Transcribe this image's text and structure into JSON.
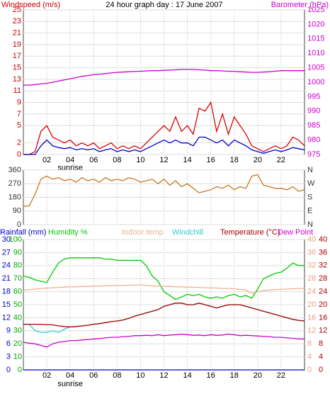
{
  "chart_data": [
    {
      "type": "line",
      "title": "24 hour graph day : 17 June 2007",
      "y_label": "Windspeed (m/s)",
      "y2_label": "Barometer (hPa)",
      "annotations": [
        {
          "text": "sunrise",
          "x": 4
        }
      ],
      "x": [
        0,
        0.5,
        1,
        1.5,
        2,
        2.5,
        3,
        3.5,
        4,
        4.5,
        5,
        5.5,
        6,
        6.5,
        7,
        7.5,
        8,
        8.5,
        9,
        9.5,
        10,
        10.5,
        11,
        11.5,
        12,
        12.5,
        13,
        13.5,
        14,
        14.5,
        15,
        15.5,
        16,
        16.5,
        17,
        17.5,
        18,
        18.5,
        19,
        19.5,
        20,
        20.5,
        21,
        21.5,
        22,
        22.5,
        23,
        23.5,
        24
      ],
      "xlim": [
        0,
        24
      ],
      "xticks": [
        {
          "value": 2,
          "label": "02"
        },
        {
          "value": 4,
          "label": "04"
        },
        {
          "value": 6,
          "label": "06"
        },
        {
          "value": 8,
          "label": "08"
        },
        10,
        12,
        14,
        16,
        18,
        20,
        22
      ],
      "ylim": [
        0,
        25
      ],
      "yticks": [
        0,
        2,
        5,
        7,
        9,
        11,
        13,
        15,
        17,
        19,
        21,
        23,
        25
      ],
      "ycolor": "#cc0000",
      "y2lim": [
        975,
        1025
      ],
      "y2ticks": [
        975,
        980,
        985,
        990,
        995,
        1000,
        1005,
        1010,
        1015,
        1020,
        1025
      ],
      "y2color": "#cc00cc",
      "series": [
        {
          "color": "#dd0000",
          "values": [
            0,
            0,
            0.5,
            4,
            5,
            3,
            2.5,
            2,
            2.5,
            1.5,
            2,
            1.5,
            2,
            1,
            1.5,
            2,
            1,
            1.5,
            1,
            1.5,
            1,
            2,
            3,
            4,
            5,
            4,
            6.5,
            4,
            5,
            3.5,
            8,
            7.5,
            9,
            4,
            7,
            3.5,
            6.5,
            5,
            3.5,
            1.5,
            1,
            0.5,
            1,
            1.5,
            1,
            1.5,
            3,
            2.5,
            1.5
          ]
        },
        {
          "color": "#0000cc",
          "values": [
            0,
            0,
            0,
            1.5,
            2.5,
            1.5,
            1.2,
            1,
            1.2,
            0.8,
            1,
            0.8,
            1,
            0.5,
            0.8,
            1,
            0.5,
            0.8,
            0.5,
            0.8,
            0.5,
            1,
            1.5,
            2,
            2.5,
            2,
            2.5,
            2,
            2,
            1.5,
            3,
            3,
            2.5,
            2,
            2.5,
            1.5,
            2.5,
            2,
            1.5,
            0.8,
            0.5,
            0.2,
            0.5,
            0.8,
            0.5,
            0.8,
            1.2,
            1,
            0.8
          ]
        },
        {
          "color": "#cc00cc",
          "axis": "y2",
          "values": [
            999,
            999,
            999.2,
            999.4,
            999.6,
            1000,
            1000.4,
            1000.8,
            1001.2,
            1001.6,
            1002,
            1002.3,
            1002.6,
            1002.8,
            1003,
            1003.2,
            1003.4,
            1003.5,
            1003.6,
            1003.7,
            1003.8,
            1003.9,
            1004,
            1004,
            1004.1,
            1004.2,
            1004.3,
            1004.4,
            1004.4,
            1004.4,
            1004.3,
            1004.2,
            1004,
            1004,
            1003.9,
            1003.8,
            1003.7,
            1003.6,
            1003.5,
            1003.4,
            1003.4,
            1003.5,
            1003.6,
            1003.8,
            1004,
            1004,
            1004,
            1004,
            1004
          ]
        }
      ]
    },
    {
      "type": "line",
      "x": [
        0,
        0.5,
        1,
        1.5,
        2,
        2.5,
        3,
        3.5,
        4,
        4.5,
        5,
        5.5,
        6,
        6.5,
        7,
        7.5,
        8,
        8.5,
        9,
        9.5,
        10,
        10.5,
        11,
        11.5,
        12,
        12.5,
        13,
        13.5,
        14,
        14.5,
        15,
        15.5,
        16,
        16.5,
        17,
        17.5,
        18,
        18.5,
        19,
        19.5,
        20,
        20.5,
        21,
        21.5,
        22,
        22.5,
        23,
        23.5,
        24
      ],
      "xlim": [
        0,
        24
      ],
      "xticks": [
        2,
        4,
        6,
        8,
        10,
        12,
        14,
        16,
        18,
        20,
        22
      ],
      "ylim": [
        0,
        360
      ],
      "yticks": [
        0,
        90,
        180,
        270,
        360
      ],
      "ycolor": "#333333",
      "y2lim": [
        0,
        360
      ],
      "y2ticks": [
        {
          "value": 0,
          "label": "N"
        },
        {
          "value": 90,
          "label": "E"
        },
        {
          "value": 180,
          "label": "S"
        },
        {
          "value": 270,
          "label": "W"
        },
        {
          "value": 360,
          "label": "N"
        }
      ],
      "y2color": "#333333",
      "series": [
        {
          "color": "#c87820",
          "values": [
            120,
            125,
            200,
            300,
            320,
            300,
            310,
            290,
            300,
            280,
            310,
            290,
            300,
            280,
            310,
            290,
            300,
            290,
            310,
            300,
            280,
            290,
            300,
            270,
            300,
            260,
            290,
            250,
            270,
            240,
            210,
            220,
            230,
            250,
            240,
            260,
            230,
            250,
            240,
            320,
            330,
            260,
            250,
            240,
            240,
            230,
            250,
            220,
            230
          ]
        }
      ]
    },
    {
      "type": "line",
      "annotations": [
        {
          "text": "sunrise",
          "x": 4
        }
      ],
      "x": [
        0,
        0.5,
        1,
        1.5,
        2,
        2.5,
        3,
        3.5,
        4,
        4.5,
        5,
        5.5,
        6,
        6.5,
        7,
        7.5,
        8,
        8.5,
        9,
        9.5,
        10,
        10.5,
        11,
        11.5,
        12,
        12.5,
        13,
        13.5,
        14,
        14.5,
        15,
        15.5,
        16,
        16.5,
        17,
        17.5,
        18,
        18.5,
        19,
        19.5,
        20,
        20.5,
        21,
        21.5,
        22,
        22.5,
        23,
        23.5,
        24
      ],
      "xlim": [
        0,
        24
      ],
      "xticks": [
        {
          "value": 2,
          "label": "02"
        },
        {
          "value": 4,
          "label": "04"
        },
        {
          "value": 6,
          "label": "06"
        },
        {
          "value": 8,
          "label": "08"
        },
        10,
        12,
        14,
        16,
        18,
        20,
        22
      ],
      "axes": {
        "rain": {
          "lim": [
            0,
            30
          ],
          "ticks": [
            0,
            3,
            6,
            9,
            12,
            15,
            18,
            21,
            24,
            27,
            30
          ],
          "color": "#0000cc"
        },
        "humidity": {
          "lim": [
            0,
            100
          ],
          "ticks": [
            0,
            10,
            20,
            30,
            40,
            50,
            60,
            70,
            80,
            90,
            100
          ],
          "color": "#00aa00"
        },
        "indoor": {
          "lim": [
            0,
            40
          ],
          "ticks": [
            0,
            4,
            8,
            12,
            16,
            20,
            24,
            28,
            32,
            36,
            40
          ],
          "color": "#e8a080"
        },
        "temp": {
          "lim": [
            0,
            40
          ],
          "ticks": [
            0,
            4,
            8,
            12,
            16,
            20,
            24,
            28,
            32,
            36,
            40
          ],
          "color": "#aa0000"
        }
      },
      "series": [
        {
          "name": "Rainfall (mm)",
          "color": "#0000cc",
          "axis": "rain",
          "values": [
            0,
            0,
            0,
            0,
            0,
            0,
            0,
            0,
            0,
            0,
            0,
            0,
            0,
            0,
            0,
            0,
            0,
            0,
            0,
            0,
            0,
            0,
            0,
            0,
            0,
            0,
            0,
            0,
            0,
            0,
            0,
            0,
            0,
            0,
            0,
            0,
            0,
            0,
            0,
            0,
            0,
            0,
            0,
            0,
            0,
            0,
            0,
            0,
            0
          ]
        },
        {
          "name": "Humidity %",
          "color": "#00cc00",
          "axis": "humidity",
          "values": [
            72,
            71,
            69,
            68,
            67,
            75,
            82,
            85,
            86,
            86,
            86,
            86,
            86,
            86,
            85,
            85,
            84,
            84,
            84,
            84,
            84,
            80,
            72,
            68,
            60,
            57,
            54,
            56,
            58,
            57,
            58,
            56,
            55,
            56,
            55,
            57,
            58,
            56,
            57,
            55,
            62,
            70,
            72,
            74,
            75,
            78,
            82,
            80,
            80
          ]
        },
        {
          "name": "Indoor temp",
          "color": "#f0b090",
          "axis": "indoor",
          "values": [
            24.5,
            24.6,
            24.8,
            25,
            25.1,
            25.2,
            25.3,
            25.4,
            25.5,
            25.5,
            25.6,
            25.6,
            25.7,
            25.7,
            25.8,
            25.8,
            25.9,
            25.9,
            26,
            26,
            26.1,
            25.9,
            25.8,
            25.7,
            25.6,
            25.6,
            25.5,
            25.5,
            25.4,
            25.4,
            25.3,
            25.2,
            25.2,
            25.1,
            25,
            25,
            24.9,
            24.7,
            24.5,
            23.5,
            24,
            24.3,
            24.5,
            24.6,
            24.7,
            24.8,
            24.9,
            25,
            25
          ]
        },
        {
          "name": "Windchill",
          "color": "#33cccc",
          "axis": "temp",
          "values": [
            14,
            14,
            12,
            11.5,
            11.5,
            12,
            11.5,
            12.5,
            13.2,
            13.3,
            13.5,
            13.7,
            14,
            14.2,
            14.5,
            14.8,
            15,
            15.3,
            15.8,
            16.5,
            17,
            17.5,
            18,
            18.5,
            19.5,
            20,
            20.5,
            20.5,
            20,
            20,
            20.5,
            20,
            19.5,
            19,
            19.5,
            20,
            20,
            20,
            19.5,
            19,
            18.5,
            18,
            17.5,
            17,
            16.5,
            16,
            15.5,
            15.2,
            15
          ]
        },
        {
          "name": "Temperature (°C)",
          "color": "#aa0000",
          "axis": "temp",
          "values": [
            14,
            14,
            14,
            14,
            13.9,
            13.8,
            13.5,
            13.3,
            13.2,
            13.3,
            13.5,
            13.7,
            14,
            14.2,
            14.5,
            14.8,
            15,
            15.3,
            15.8,
            16.5,
            17,
            17.5,
            18,
            18.5,
            19.5,
            20,
            20.5,
            20.5,
            20,
            20,
            20.5,
            20,
            19.5,
            19,
            19.5,
            20,
            20,
            20,
            19.5,
            19,
            18.5,
            18,
            17.5,
            17,
            16.5,
            16,
            15.5,
            15.2,
            15
          ]
        },
        {
          "name": "Dew Point",
          "color": "#cc00cc",
          "axis": "temp",
          "values": [
            8.5,
            8.2,
            8,
            7.5,
            7,
            8,
            8.5,
            8.7,
            9,
            9,
            9.2,
            9.3,
            9.5,
            9.6,
            9.8,
            10,
            10,
            10.2,
            10.3,
            10.5,
            10.5,
            10.6,
            10.5,
            10.8,
            10.5,
            10.7,
            10.8,
            11,
            10.8,
            10.6,
            10.7,
            10.5,
            10.8,
            10.6,
            10.7,
            11,
            10.8,
            10.5,
            10.6,
            10.5,
            10.4,
            10.3,
            10.2,
            10,
            10,
            9.8,
            9.7,
            9.5,
            9.5
          ]
        }
      ]
    }
  ]
}
